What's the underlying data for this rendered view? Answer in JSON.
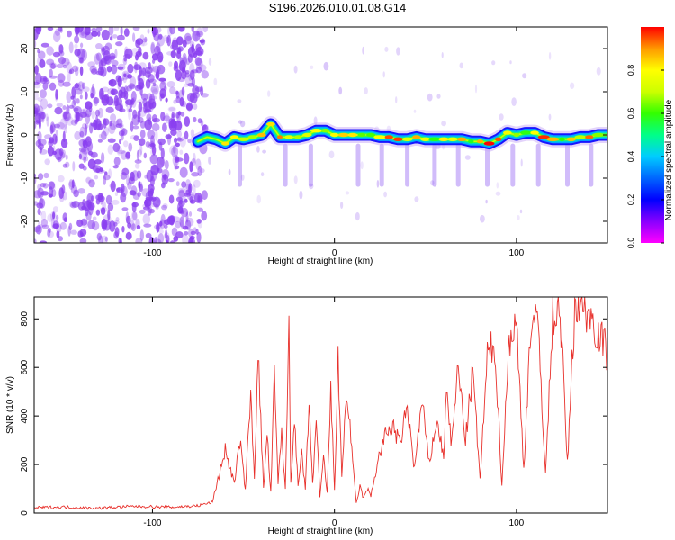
{
  "figure_title": "S196.2026.010.01.08.G14",
  "colors": {
    "snr_line": "#e8312c",
    "noise_cloud": "#8a3ff0",
    "colormap": [
      "#ff00ff",
      "#8800ff",
      "#0000ff",
      "#0066ff",
      "#00ccff",
      "#00ff88",
      "#33ff00",
      "#ccff00",
      "#ffff00",
      "#ff9900",
      "#ff0000"
    ]
  },
  "chart_data": [
    {
      "type": "heatmap",
      "title": "",
      "xlabel": "Height of straight line (km)",
      "ylabel": "Frequency (Hz)",
      "xlim": [
        -165,
        150
      ],
      "ylim": [
        -25,
        25
      ],
      "xticks": [
        -100,
        0,
        100
      ],
      "yticks": [
        -20,
        -10,
        0,
        10,
        20
      ],
      "noise_region_x": [
        -165,
        -75
      ],
      "signal_track": {
        "x": [
          -75,
          -70,
          -65,
          -60,
          -55,
          -50,
          -45,
          -40,
          -35,
          -30,
          -25,
          -20,
          -15,
          -10,
          -5,
          0,
          5,
          10,
          15,
          20,
          25,
          30,
          35,
          40,
          45,
          50,
          55,
          60,
          65,
          70,
          75,
          80,
          85,
          90,
          95,
          100,
          105,
          110,
          115,
          120,
          125,
          130,
          135,
          140,
          145,
          150
        ],
        "freq": [
          -1.5,
          -0.5,
          -1,
          -2,
          -0.5,
          -1,
          -0.5,
          0,
          2.5,
          -0.5,
          -0.5,
          -0.5,
          0,
          1,
          1,
          0,
          0,
          0,
          0,
          0,
          -0.5,
          -0.5,
          -1,
          -1,
          -0.5,
          -1,
          -1,
          -1,
          -1,
          -1,
          -1.5,
          -1.5,
          -2,
          -1,
          0.5,
          0,
          0.5,
          0.5,
          -0.5,
          -1,
          -1,
          -1,
          -0.5,
          -0.5,
          0,
          0
        ]
      },
      "colorbar": {
        "label": "Normalized spectral amplitude",
        "range": [
          0,
          1
        ],
        "ticks": [
          "0.0",
          "0.2",
          "0.4",
          "0.6",
          "0.8"
        ]
      }
    },
    {
      "type": "line",
      "title": "",
      "xlabel": "Height of straight line (km)",
      "ylabel": "SNR (10 * v/v)",
      "xlim": [
        -165,
        150
      ],
      "ylim": [
        0,
        890
      ],
      "xticks": [
        -100,
        0,
        100
      ],
      "yticks": [
        0,
        200,
        400,
        600,
        800
      ],
      "series": [
        {
          "name": "SNR",
          "x": [
            -165,
            -150,
            -130,
            -110,
            -90,
            -75,
            -67,
            -64,
            -60,
            -55,
            -52,
            -49,
            -46,
            -44,
            -42,
            -39,
            -37,
            -35,
            -33,
            -31,
            -29,
            -27,
            -25,
            -24,
            -22,
            -20,
            -18,
            -16,
            -14,
            -12,
            -10,
            -8,
            -6,
            -4,
            -2,
            0,
            2,
            4,
            6,
            8,
            10,
            12,
            14,
            16,
            18,
            20,
            24,
            28,
            32,
            36,
            40,
            44,
            48,
            52,
            56,
            60,
            62,
            64,
            68,
            72,
            76,
            80,
            84,
            88,
            92,
            96,
            100,
            104,
            108,
            112,
            116,
            120,
            124,
            128,
            132,
            136,
            140,
            144,
            148,
            150
          ],
          "y": [
            22,
            25,
            20,
            28,
            24,
            30,
            45,
            140,
            260,
            120,
            300,
            100,
            480,
            150,
            660,
            100,
            320,
            80,
            560,
            120,
            340,
            90,
            790,
            120,
            410,
            100,
            250,
            90,
            440,
            120,
            380,
            60,
            230,
            80,
            500,
            100,
            620,
            150,
            450,
            420,
            200,
            40,
            110,
            60,
            100,
            70,
            220,
            320,
            360,
            280,
            440,
            180,
            460,
            200,
            380,
            240,
            540,
            260,
            600,
            300,
            580,
            140,
            640,
            700,
            120,
            720,
            780,
            180,
            800,
            760,
            160,
            820,
            840,
            200,
            850,
            870,
            820,
            760,
            700,
            650
          ]
        }
      ]
    }
  ]
}
